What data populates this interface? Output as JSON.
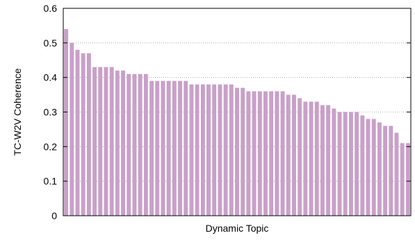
{
  "chart_data": {
    "type": "bar",
    "title": "",
    "xlabel": "Dynamic Topic",
    "ylabel": "TC-W2V Coherence",
    "ylim": [
      0,
      0.6
    ],
    "yticks": [
      0,
      0.1,
      0.2,
      0.3,
      0.4,
      0.5,
      0.6
    ],
    "ytick_labels": [
      "0",
      "0.1",
      "0.2",
      "0.3",
      "0.4",
      "0.5",
      "0.6"
    ],
    "grid": "horizontal-dotted",
    "bar_color": "#c9a0c9",
    "values": [
      0.54,
      0.5,
      0.48,
      0.47,
      0.47,
      0.43,
      0.43,
      0.43,
      0.43,
      0.42,
      0.42,
      0.41,
      0.41,
      0.41,
      0.41,
      0.39,
      0.39,
      0.39,
      0.39,
      0.39,
      0.39,
      0.39,
      0.38,
      0.38,
      0.38,
      0.38,
      0.38,
      0.38,
      0.38,
      0.38,
      0.37,
      0.37,
      0.36,
      0.36,
      0.36,
      0.36,
      0.36,
      0.36,
      0.36,
      0.35,
      0.35,
      0.34,
      0.33,
      0.33,
      0.33,
      0.32,
      0.32,
      0.31,
      0.3,
      0.3,
      0.3,
      0.3,
      0.29,
      0.28,
      0.28,
      0.27,
      0.26,
      0.26,
      0.24,
      0.21,
      0.21
    ]
  }
}
